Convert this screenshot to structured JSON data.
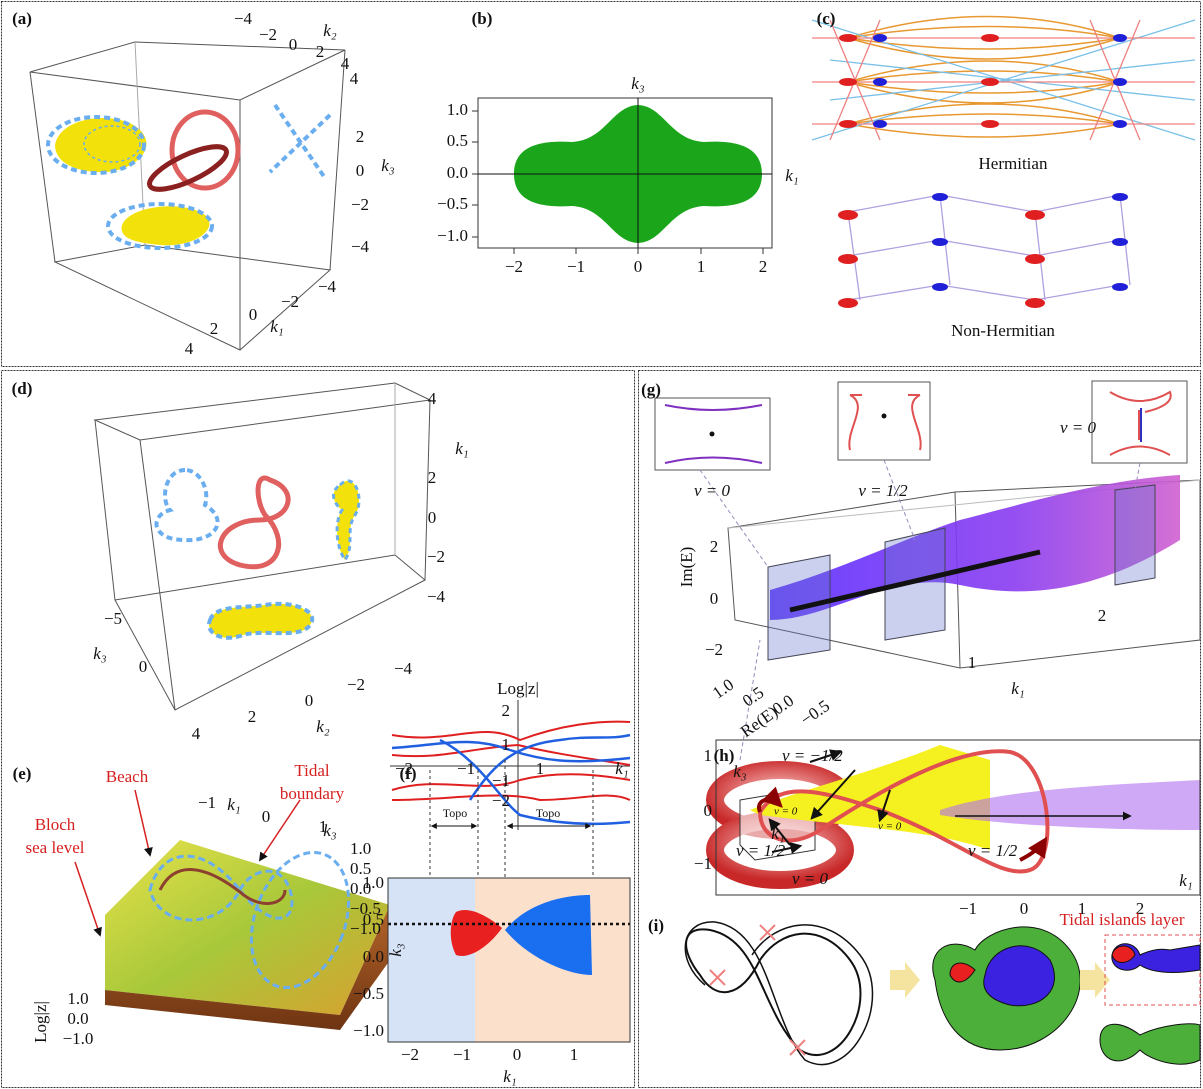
{
  "panels": {
    "a": {
      "label": "(a)",
      "k1": "k₁",
      "k2": "k₂",
      "k3": "k₃",
      "k1_ticks": [
        "−4",
        "−2",
        "0",
        "2",
        "4"
      ],
      "k2_ticks": [
        "−4",
        "−2",
        "0",
        "2",
        "4"
      ],
      "k3_ticks": [
        "4",
        "2",
        "0",
        "−2",
        "−4"
      ]
    },
    "b": {
      "label": "(b)",
      "k1": "k₁",
      "k3": "k₃",
      "x_ticks": [
        "−2",
        "−1",
        "0",
        "1",
        "2"
      ],
      "y_ticks": [
        "1.0",
        "0.5",
        "0.0",
        "−0.5",
        "−1.0"
      ]
    },
    "c": {
      "label": "(c)",
      "top_caption": "Hermitian",
      "bottom_caption": "Non-Hermitian"
    },
    "d": {
      "label": "(d)",
      "k1": "k₁",
      "k2": "k₂",
      "k3": "k₃",
      "k1_ticks": [
        "4",
        "2",
        "0",
        "−2",
        "−4"
      ],
      "k2_ticks": [
        "4",
        "2",
        "0",
        "−2",
        "−4"
      ],
      "k3_ticks": [
        "−5",
        "0"
      ]
    },
    "e": {
      "label": "(e)",
      "beach": "Beach",
      "tidal_boundary": [
        "Tidal",
        "boundary"
      ],
      "bloch_sea_level": [
        "Bloch",
        "sea level"
      ],
      "k1": "k₁",
      "k3": "k₃",
      "z_axis": "Log|z|",
      "k1_ticks": [
        "−1",
        "0",
        "1"
      ],
      "k3_ticks": [
        "1.0",
        "0.5",
        "0.0",
        "−0.5",
        "−1.0"
      ],
      "z_ticks": [
        "1.0",
        "0.0",
        "−1.0"
      ]
    },
    "f": {
      "label": "(f)",
      "top_axis": "Log|z|",
      "top_y_ticks": [
        "2",
        "1",
        "−1",
        "−2"
      ],
      "top_x_ticks": [
        "−2",
        "−1",
        "1"
      ],
      "top_k1": "k₁",
      "topo": [
        "Topo",
        "Topo"
      ],
      "k3": "k₃",
      "k1": "k₁",
      "y_ticks": [
        "1.0",
        "0.5",
        "0.0",
        "−0.5",
        "−1.0"
      ],
      "x_ticks": [
        "−2",
        "−1",
        "0",
        "1"
      ]
    },
    "g": {
      "label": "(g)",
      "insets": [
        "v = 0",
        "v = 1/2",
        "v = 0"
      ],
      "im_axis": "Im(E)",
      "im_ticks": [
        "2",
        "0",
        "−2"
      ],
      "k1": "k₁",
      "k1_ticks": [
        "1",
        "2"
      ],
      "re_axis": "Re(E)",
      "re_ticks": [
        "1.0",
        "0.5",
        "0.0",
        "−0.5"
      ],
      "torus_k1": "k₁"
    },
    "h": {
      "label": "(h)",
      "k3": "k₃",
      "k1": "k₁",
      "y_ticks": [
        "1",
        "0",
        "−1"
      ],
      "x_ticks": [
        "−1",
        "0",
        "1",
        "2"
      ],
      "annotations": [
        "v = −1/2",
        "v = 1/2",
        "v = 0",
        "v = 0",
        "v = 0",
        "v = 1/2"
      ]
    },
    "i": {
      "label": "(i)",
      "layer": "Tidal islands layer"
    }
  }
}
